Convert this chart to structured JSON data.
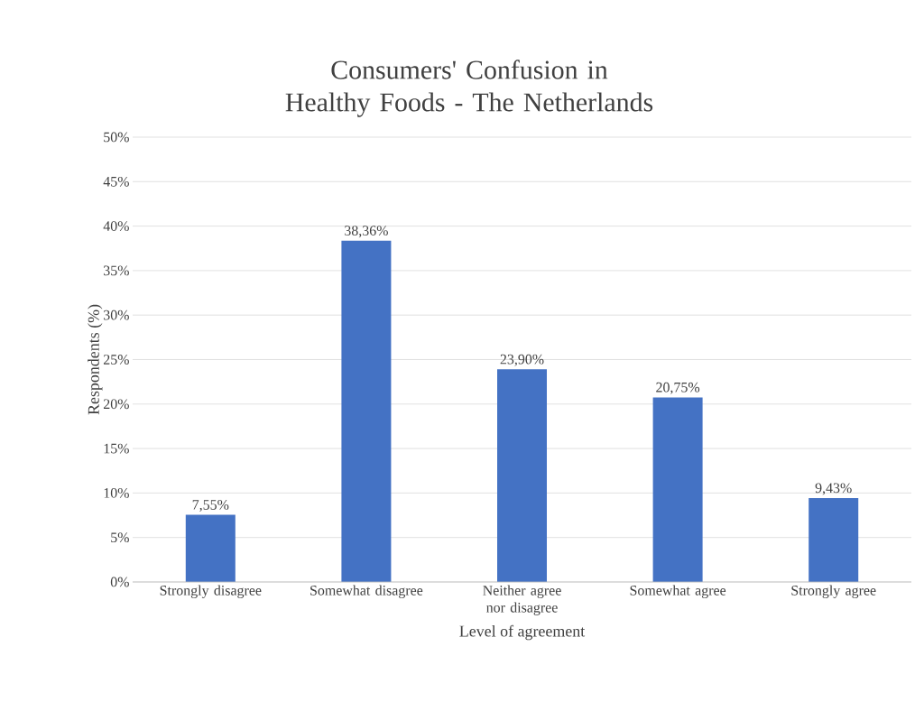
{
  "chart_data": {
    "type": "bar",
    "title": "Consumers' Confusion in Healthy Foods - The Netherlands",
    "xlabel": "Level of agreement",
    "ylabel": "Respondents (%)",
    "categories": [
      "Strongly disagree",
      "Somewhat disagree",
      "Neither agree nor disagree",
      "Somewhat agree",
      "Strongly agree"
    ],
    "values": [
      7.55,
      38.36,
      23.9,
      20.75,
      9.43
    ],
    "value_labels": [
      "7,55%",
      "38,36%",
      "23,90%",
      "20,75%",
      "9,43%"
    ],
    "color": "#4472c4",
    "ylim": [
      0,
      50
    ],
    "yticks": [
      {
        "value": 0,
        "label": "0%"
      },
      {
        "value": 5,
        "label": "5%"
      },
      {
        "value": 10,
        "label": "10%"
      },
      {
        "value": 15,
        "label": "15%"
      },
      {
        "value": 20,
        "label": "20%"
      },
      {
        "value": 25,
        "label": "25%"
      },
      {
        "value": 30,
        "label": "30%"
      },
      {
        "value": 35,
        "label": "35%"
      },
      {
        "value": 40,
        "label": "40%"
      },
      {
        "value": 45,
        "label": "45%"
      },
      {
        "value": 50,
        "label": "50%"
      }
    ],
    "grid": "y"
  }
}
